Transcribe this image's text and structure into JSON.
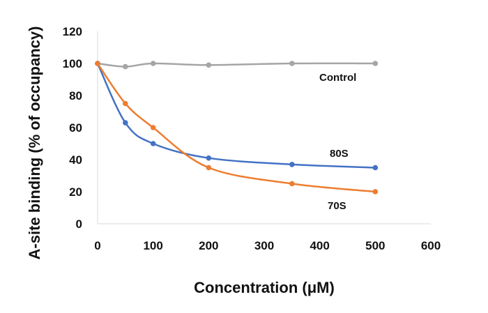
{
  "chart_data": {
    "type": "line",
    "title": "",
    "xlabel": "Concentration (μM)",
    "ylabel": "A-site binding (% of occupancy)",
    "xlim": [
      0,
      600
    ],
    "ylim": [
      0,
      120
    ],
    "xticks": [
      0,
      100,
      200,
      300,
      400,
      500,
      600
    ],
    "yticks": [
      0,
      20,
      40,
      60,
      80,
      100,
      120
    ],
    "grid": false,
    "legend": "none (series labelled inline)",
    "series": [
      {
        "name": "Control",
        "color": "#a5a5a5",
        "points": [
          [
            0,
            100
          ],
          [
            50,
            98
          ],
          [
            100,
            100
          ],
          [
            200,
            99
          ],
          [
            350,
            100
          ],
          [
            500,
            100
          ]
        ]
      },
      {
        "name": "80S",
        "color": "#4472c4",
        "points": [
          [
            0,
            100
          ],
          [
            50,
            63
          ],
          [
            100,
            50
          ],
          [
            200,
            41
          ],
          [
            350,
            37
          ],
          [
            500,
            35
          ]
        ]
      },
      {
        "name": "70S",
        "color": "#ed7d31",
        "points": [
          [
            0,
            100
          ],
          [
            50,
            75
          ],
          [
            100,
            60
          ],
          [
            200,
            35
          ],
          [
            350,
            25
          ],
          [
            500,
            20
          ]
        ]
      }
    ]
  }
}
